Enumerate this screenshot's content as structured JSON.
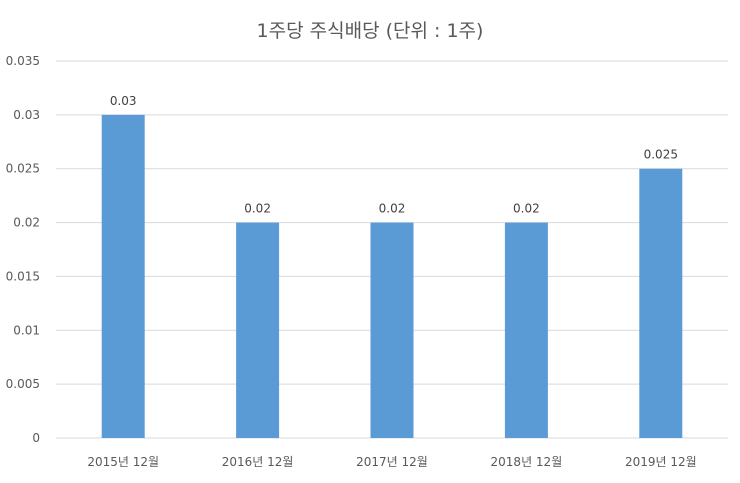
{
  "chart_data": {
    "type": "bar",
    "title": "1주당 주식배당 (단위 : 1주)",
    "categories": [
      "2015년 12월",
      "2016년 12월",
      "2017년 12월",
      "2018년 12월",
      "2019년 12월"
    ],
    "values": [
      0.03,
      0.02,
      0.02,
      0.02,
      0.025
    ],
    "data_labels": [
      "0.03",
      "0.02",
      "0.02",
      "0.02",
      "0.025"
    ],
    "y_ticks": [
      "0",
      "0.005",
      "0.01",
      "0.015",
      "0.02",
      "0.025",
      "0.03",
      "0.035"
    ],
    "xlabel": "",
    "ylabel": "",
    "ylim": [
      0,
      0.035
    ],
    "grid": true,
    "legend": "none",
    "bar_color": "#5b9bd5"
  }
}
